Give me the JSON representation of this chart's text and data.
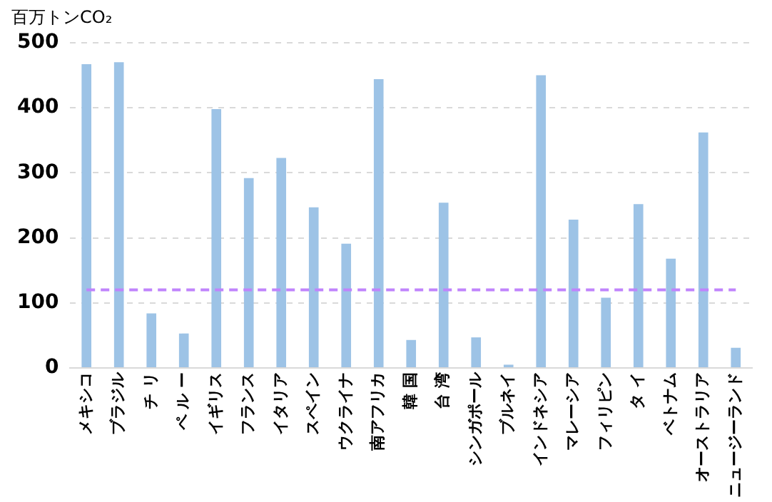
{
  "chart_data": {
    "type": "bar",
    "ylabel": "百万トンCO₂",
    "categories": [
      "メキシコ",
      "ブラジル",
      "チ リ",
      "ペ ル ー",
      "イギリス",
      "フランス",
      "イタリア",
      "スペイン",
      "ウクライナ",
      "南アフリカ",
      "韓 国",
      "台 湾",
      "シンガポール",
      "ブルネイ",
      "インドネシア",
      "マレーシア",
      "フィリピン",
      "タ イ",
      "ベトナム",
      "オーストラリア",
      "ニュージーランド"
    ],
    "values": [
      467,
      470,
      84,
      53,
      398,
      292,
      323,
      247,
      191,
      444,
      43,
      254,
      47,
      5,
      450,
      228,
      108,
      252,
      168,
      362,
      31
    ],
    "color": "#9dc3e6",
    "ylim": [
      0,
      500
    ],
    "yticks": [
      0,
      100,
      200,
      300,
      400,
      500
    ],
    "grid": "y",
    "legend": false,
    "ref_lines": [
      {
        "axis": "y",
        "value": 120,
        "color": "#c084fc",
        "line_style": "dashed"
      }
    ]
  }
}
